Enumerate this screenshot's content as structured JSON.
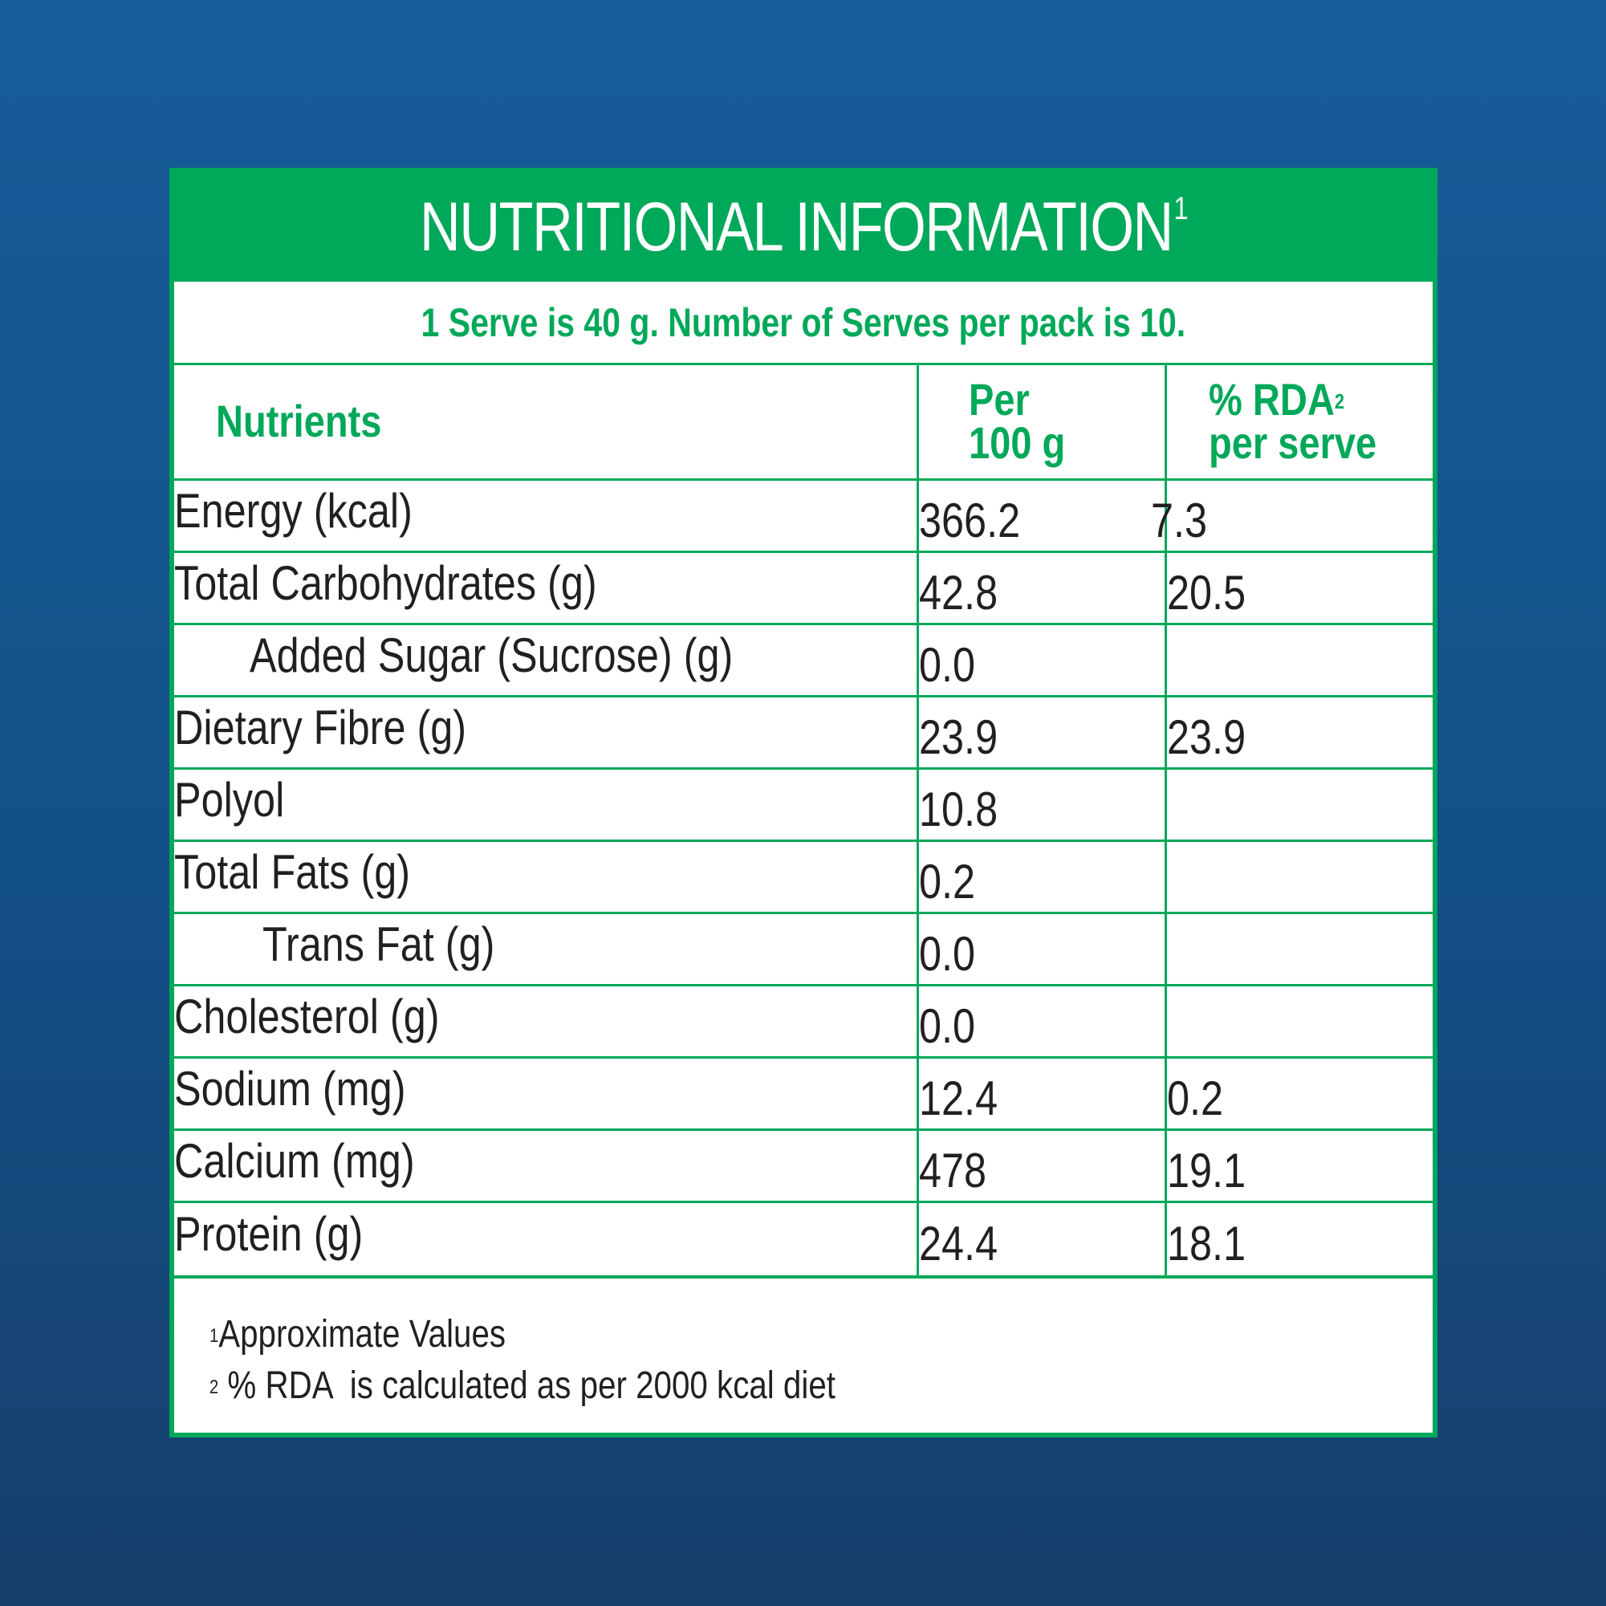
{
  "title": {
    "text": "NUTRITIONAL INFORMATION",
    "superscript": "1"
  },
  "serve_line": "1 Serve is 40 g. Number of Serves per pack is 10.",
  "headers": {
    "nutrients": "Nutrients",
    "per_100g_line1": "Per",
    "per_100g_line2": "100 g",
    "rda_line1": "% RDA",
    "rda_superscript": "2",
    "rda_line2": "per serve"
  },
  "rows": [
    {
      "name": "Energy (kcal)",
      "per_100g": "366.2",
      "rda": "7.3"
    },
    {
      "name": "Total Carbohydrates (g)",
      "per_100g": "42.8",
      "rda": "20.5"
    },
    {
      "name": "Added Sugar (Sucrose) (g)",
      "per_100g": "0.0",
      "rda": ""
    },
    {
      "name": "Dietary Fibre (g)",
      "per_100g": "23.9",
      "rda": "23.9"
    },
    {
      "name": "Polyol",
      "per_100g": "10.8",
      "rda": ""
    },
    {
      "name": "Total Fats (g)",
      "per_100g": "0.2",
      "rda": ""
    },
    {
      "name": "Trans Fat (g)",
      "per_100g": "0.0",
      "rda": ""
    },
    {
      "name": "Cholesterol (g)",
      "per_100g": "0.0",
      "rda": ""
    },
    {
      "name": "Sodium (mg)",
      "per_100g": "12.4",
      "rda": "0.2"
    },
    {
      "name": "Calcium (mg)",
      "per_100g": "478",
      "rda": "19.1"
    },
    {
      "name": "Protein (g)",
      "per_100g": "24.4",
      "rda": "18.1"
    }
  ],
  "footnotes": [
    {
      "marker": "1",
      "text": "Approximate Values"
    },
    {
      "marker": "2",
      "text": " % RDA  is calculated as per 2000 kcal diet"
    }
  ],
  "colors": {
    "accent_green": "#00a859",
    "background_blue": "#165d9a",
    "text_dark": "#231f20"
  }
}
